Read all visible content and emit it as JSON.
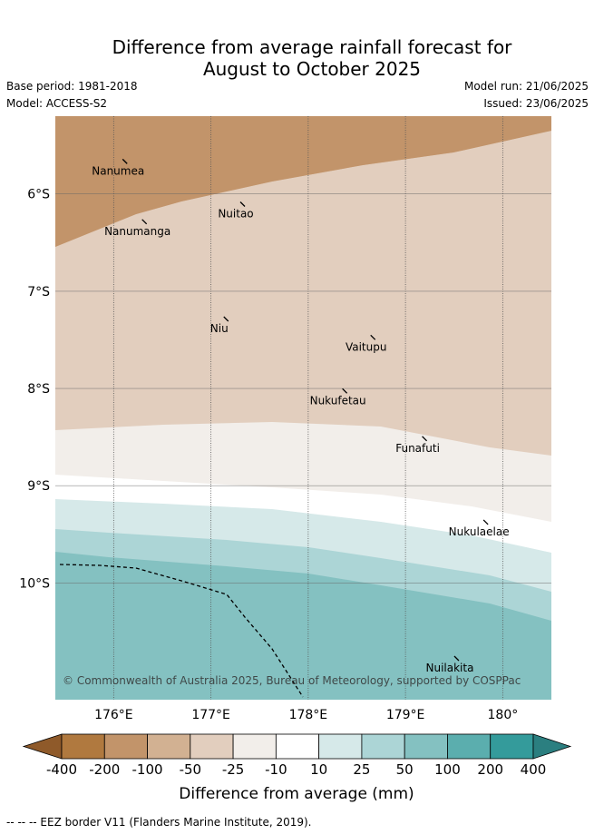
{
  "title_line1": "Difference from average rainfall forecast for",
  "title_line2": "August to October 2025",
  "base_period": "Base period: 1981-2018",
  "model": "Model: ACCESS-S2",
  "model_run": "Model run: 21/06/2025",
  "issued": "Issued: 23/06/2025",
  "map": {
    "lon_ticks": [
      176,
      177,
      178,
      179,
      180
    ],
    "lon_labels": [
      "176°E",
      "177°E",
      "178°E",
      "179°E",
      "180°"
    ],
    "lat_ticks": [
      6,
      7,
      8,
      9,
      10
    ],
    "lat_labels": [
      "6°S",
      "7°S",
      "8°S",
      "9°S",
      "10°S"
    ],
    "lon_range": [
      175.4,
      180.5
    ],
    "lat_range": [
      5.2,
      11.2
    ],
    "islands": [
      {
        "name": "Nanumea",
        "lon": 176.12,
        "lat": 5.67
      },
      {
        "name": "Nuitao",
        "lon": 177.33,
        "lat": 6.11
      },
      {
        "name": "Nanumanga",
        "lon": 176.32,
        "lat": 6.29
      },
      {
        "name": "Niu",
        "lon": 177.16,
        "lat": 7.29
      },
      {
        "name": "Vaitupu",
        "lon": 178.67,
        "lat": 7.48
      },
      {
        "name": "Nukufetau",
        "lon": 178.38,
        "lat": 8.03
      },
      {
        "name": "Funafuti",
        "lon": 179.2,
        "lat": 8.52
      },
      {
        "name": "Nukulaelae",
        "lon": 179.83,
        "lat": 9.38
      },
      {
        "name": "Nuilakita",
        "lon": 179.53,
        "lat": 10.78
      }
    ],
    "credit": "© Commonwealth of Australia 2025, Bureau of Meteorology, supported by COSPPac"
  },
  "colorbar": {
    "labels": [
      "-400",
      "-200",
      "-100",
      "-50",
      "-25",
      "-10",
      "10",
      "25",
      "50",
      "100",
      "200",
      "400"
    ],
    "colors": [
      "#8f5a2a",
      "#b0793f",
      "#c2946a",
      "#d2b192",
      "#e2cebe",
      "#f2eeea",
      "#ffffff",
      "#d6e9e9",
      "#acd5d6",
      "#84c1c1",
      "#5baeae",
      "#349b9b",
      "#2b7f80"
    ],
    "title": "Difference from average (mm)"
  },
  "footnote": "-- -- -- EEZ border V11 (Flanders Marine Institute, 2019)."
}
